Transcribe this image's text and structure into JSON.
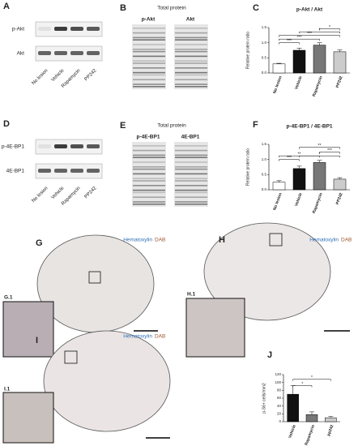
{
  "panels": {
    "A": {
      "letter": "A",
      "rows": [
        "p-Akt",
        "Akt"
      ],
      "lanes": [
        "No lesion",
        "Vehicle",
        "Rapamycin",
        "PP242"
      ]
    },
    "B": {
      "letter": "B",
      "title": "Total protein",
      "gels": [
        "p-Akt",
        "Akt"
      ]
    },
    "D": {
      "letter": "D",
      "rows": [
        "p-4E-BP1",
        "4E-BP1"
      ],
      "lanes": [
        "No lesion",
        "Vehicle",
        "Rapamycin",
        "PP242"
      ]
    },
    "E": {
      "letter": "E",
      "title": "Total protein",
      "gels": [
        "p-4E-BP1",
        "4E-BP1"
      ]
    },
    "G": {
      "letter": "G",
      "stain1": "Hematoxylin",
      "stain2": "DAB",
      "inset": "G.1"
    },
    "H": {
      "letter": "H",
      "stain1": "Hematoxylin",
      "stain2": "DAB",
      "inset": "H.1"
    },
    "I": {
      "letter": "I",
      "stain1": "Hematoxylin",
      "stain2": "DAB",
      "inset": "I.1"
    }
  },
  "chart_data": [
    {
      "type": "bar",
      "letter": "C",
      "title": "p-Akt / Akt",
      "y_label": "Relative protein ratio",
      "categories": [
        "No lesion",
        "Vehicle",
        "Rapamycin",
        "PP242"
      ],
      "values": [
        0.3,
        0.75,
        0.92,
        0.7
      ],
      "errors": [
        0.02,
        0.07,
        0.08,
        0.06
      ],
      "colors": [
        "#ffffff",
        "#111111",
        "#777777",
        "#cccccc"
      ],
      "ylim": [
        0,
        1.5
      ],
      "yticks": [
        {
          "value": 0,
          "label": "0.0"
        },
        {
          "value": 0.5,
          "label": "0.5"
        },
        {
          "value": 1,
          "label": "1.0"
        },
        {
          "value": 1.5,
          "label": "1.5"
        }
      ],
      "significance": [
        "***",
        "***",
        "***",
        "*",
        "*"
      ]
    },
    {
      "type": "bar",
      "letter": "F",
      "title": "p-4E-BP1 / 4E-BP1",
      "y_label": "Relative protein ratio",
      "categories": [
        "No lesion",
        "Vehicle",
        "Rapamycin",
        "PP242"
      ],
      "values": [
        0.25,
        0.7,
        0.9,
        0.35
      ],
      "errors": [
        0.05,
        0.08,
        0.07,
        0.05
      ],
      "colors": [
        "#ffffff",
        "#111111",
        "#777777",
        "#cccccc"
      ],
      "ylim": [
        0,
        1.5
      ],
      "yticks": [
        {
          "value": 0,
          "label": "0.0"
        },
        {
          "value": 0.5,
          "label": "0.5"
        },
        {
          "value": 1,
          "label": "1.0"
        },
        {
          "value": 1.5,
          "label": "1.5"
        }
      ],
      "significance": [
        "***",
        "**",
        "*",
        "***",
        "**"
      ]
    },
    {
      "type": "bar",
      "letter": "J",
      "y_label": "p-S6+ cells/mm2",
      "categories": [
        "Vehicle",
        "Rapamycin",
        "pp242"
      ],
      "values": [
        70,
        18,
        10
      ],
      "errors": [
        22,
        7,
        3
      ],
      "colors": [
        "#111111",
        "#777777",
        "#cccccc"
      ],
      "ylim": [
        0,
        120
      ],
      "yticks": [
        0,
        20,
        40,
        60,
        80,
        100,
        120
      ],
      "significance": [
        "*",
        "*"
      ]
    }
  ]
}
